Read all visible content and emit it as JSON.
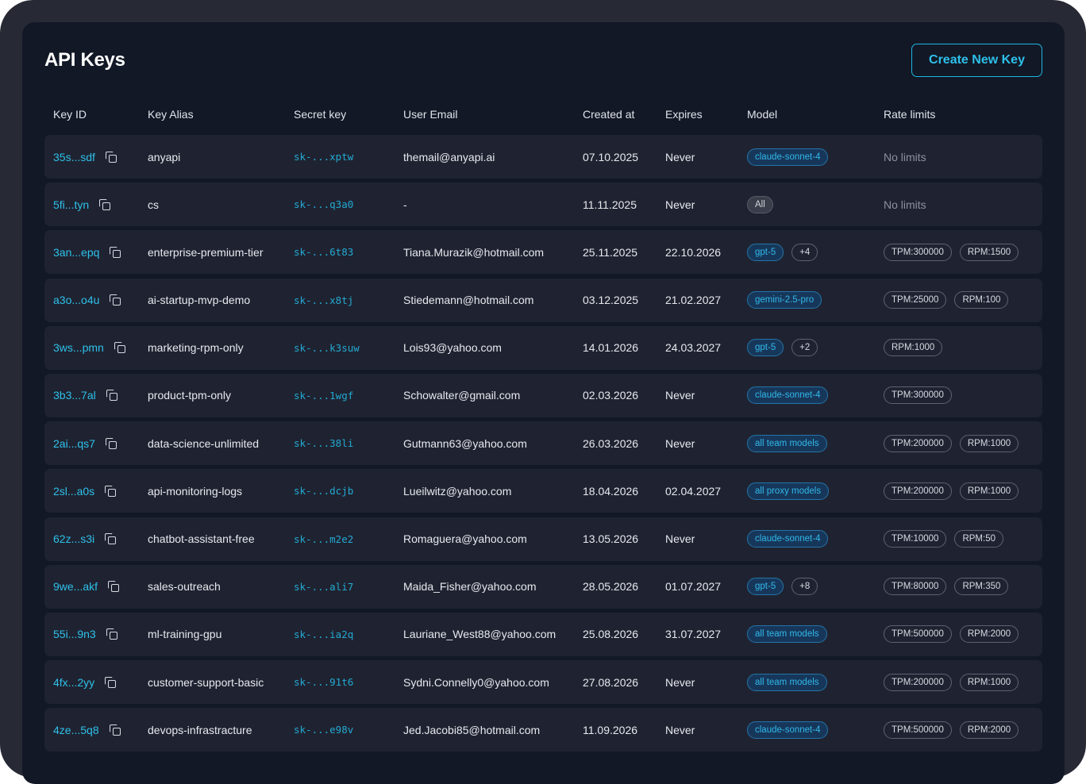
{
  "header": {
    "title": "API Keys",
    "create_button": "Create New Key"
  },
  "table": {
    "columns": {
      "key_id": "Key ID",
      "key_alias": "Key Alias",
      "secret_key": "Secret key",
      "user_email": "User Email",
      "created_at": "Created at",
      "expires": "Expires",
      "model": "Model",
      "rate_limits": "Rate limits"
    },
    "rows": [
      {
        "id": "35s...sdf",
        "alias": "anyapi",
        "secret": "sk-...xptw",
        "email": "themail@anyapi.ai",
        "created": "07.10.2025",
        "expires": "Never",
        "models": [
          "claude-sonnet-4"
        ],
        "extra": "",
        "limits": [],
        "no_limits": "No limits"
      },
      {
        "id": "5fi...tyn",
        "alias": "cs",
        "secret": "sk-...q3a0",
        "email": "-",
        "created": "11.11.2025",
        "expires": "Never",
        "models": [],
        "all_label": "All",
        "extra": "",
        "limits": [],
        "no_limits": "No limits"
      },
      {
        "id": "3an...epq",
        "alias": "enterprise-premium-tier",
        "secret": "sk-...6t83",
        "email": "Tiana.Murazik@hotmail.com",
        "created": "25.11.2025",
        "expires": "22.10.2026",
        "models": [
          "gpt-5"
        ],
        "extra": "+4",
        "limits": [
          "TPM:300000",
          "RPM:1500"
        ]
      },
      {
        "id": "a3o...o4u",
        "alias": "ai-startup-mvp-demo",
        "secret": "sk-...x8tj",
        "email": "Stiedemann@hotmail.com",
        "created": "03.12.2025",
        "expires": "21.02.2027",
        "models": [
          "gemini-2.5-pro"
        ],
        "extra": "",
        "limits": [
          "TPM:25000",
          "RPM:100"
        ]
      },
      {
        "id": "3ws...pmn",
        "alias": "marketing-rpm-only",
        "secret": "sk-...k3suw",
        "email": "Lois93@yahoo.com",
        "created": "14.01.2026",
        "expires": "24.03.2027",
        "models": [
          "gpt-5"
        ],
        "extra": "+2",
        "limits": [
          "RPM:1000"
        ]
      },
      {
        "id": "3b3...7al",
        "alias": "product-tpm-only",
        "secret": "sk-...1wgf",
        "email": "Schowalter@gmail.com",
        "created": "02.03.2026",
        "expires": "Never",
        "models": [
          "claude-sonnet-4"
        ],
        "extra": "",
        "limits": [
          "TPM:300000"
        ]
      },
      {
        "id": "2ai...qs7",
        "alias": "data-science-unlimited",
        "secret": "sk-...38li",
        "email": "Gutmann63@yahoo.com",
        "created": "26.03.2026",
        "expires": "Never",
        "models": [
          "all team models"
        ],
        "extra": "",
        "limits": [
          "TPM:200000",
          "RPM:1000"
        ]
      },
      {
        "id": "2sl...a0s",
        "alias": "api-monitoring-logs",
        "secret": "sk-...dcjb",
        "email": "Lueilwitz@yahoo.com",
        "created": "18.04.2026",
        "expires": "02.04.2027",
        "models": [
          "all proxy models"
        ],
        "extra": "",
        "limits": [
          "TPM:200000",
          "RPM:1000"
        ]
      },
      {
        "id": "62z...s3i",
        "alias": "chatbot-assistant-free",
        "secret": "sk-...m2e2",
        "email": "Romaguera@yahoo.com",
        "created": "13.05.2026",
        "expires": "Never",
        "models": [
          "claude-sonnet-4"
        ],
        "extra": "",
        "limits": [
          "TPM:10000",
          "RPM:50"
        ]
      },
      {
        "id": "9we...akf",
        "alias": "sales-outreach",
        "secret": "sk-...ali7",
        "email": "Maida_Fisher@yahoo.com",
        "created": "28.05.2026",
        "expires": "01.07.2027",
        "models": [
          "gpt-5"
        ],
        "extra": "+8",
        "limits": [
          "TPM:80000",
          "RPM:350"
        ]
      },
      {
        "id": "55i...9n3",
        "alias": "ml-training-gpu",
        "secret": "sk-...ia2q",
        "email": "Lauriane_West88@yahoo.com",
        "created": "25.08.2026",
        "expires": "31.07.2027",
        "models": [
          "all team models"
        ],
        "extra": "",
        "limits": [
          "TPM:500000",
          "RPM:2000"
        ]
      },
      {
        "id": "4fx...2yy",
        "alias": "customer-support-basic",
        "secret": "sk-...91t6",
        "email": "Sydni.Connelly0@yahoo.com",
        "created": "27.08.2026",
        "expires": "Never",
        "models": [
          "all team models"
        ],
        "extra": "",
        "limits": [
          "TPM:200000",
          "RPM:1000"
        ]
      },
      {
        "id": "4ze...5q8",
        "alias": "devops-infrastracture",
        "secret": "sk-...e98v",
        "email": "Jed.Jacobi85@hotmail.com",
        "created": "11.09.2026",
        "expires": "Never",
        "models": [
          "claude-sonnet-4"
        ],
        "extra": "",
        "limits": [
          "TPM:500000",
          "RPM:2000"
        ]
      }
    ]
  },
  "colors": {
    "accent": "#2ec0ea",
    "background": "#121826",
    "row_background": "#1f2331",
    "frame": "#272a35"
  },
  "icons": {
    "copy": "copy-icon"
  }
}
